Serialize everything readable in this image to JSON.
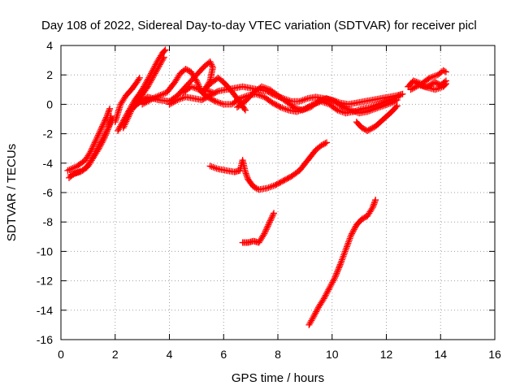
{
  "chart_data": {
    "type": "scatter",
    "title": "Day 108 of 2022, Sidereal Day-to-day VTEC variation (SDTVAR) for receiver picl",
    "xlabel": "GPS time / hours",
    "ylabel": "SDTVAR / TECUs",
    "xlim": [
      0,
      16
    ],
    "ylim": [
      -16,
      4
    ],
    "xticks": [
      0,
      2,
      4,
      6,
      8,
      10,
      12,
      14,
      16
    ],
    "yticks": [
      -16,
      -14,
      -12,
      -10,
      -8,
      -6,
      -4,
      -2,
      0,
      2,
      4
    ],
    "grid": true,
    "marker": "plus",
    "color": "#ff0000",
    "series": [
      {
        "x": [
          0.25,
          0.6,
          0.9,
          1.1,
          1.3,
          1.5,
          1.7,
          1.8
        ],
        "y": [
          -4.5,
          -4.2,
          -3.8,
          -3.2,
          -2.4,
          -1.6,
          -0.8,
          -0.3
        ]
      },
      {
        "x": [
          0.3,
          0.5,
          0.8,
          1.0,
          1.2,
          1.4,
          1.6,
          1.75,
          1.85
        ],
        "y": [
          -5.0,
          -4.7,
          -4.5,
          -4.2,
          -3.6,
          -3.0,
          -2.3,
          -1.6,
          -0.8
        ]
      },
      {
        "x": [
          0.35,
          0.7,
          0.95,
          1.15,
          1.35,
          1.55,
          1.75,
          1.9
        ],
        "y": [
          -4.8,
          -4.6,
          -4.3,
          -3.7,
          -3.0,
          -2.3,
          -1.6,
          -1.0
        ]
      },
      {
        "x": [
          2.0,
          2.2,
          2.4,
          2.6,
          2.8,
          2.9
        ],
        "y": [
          -1.2,
          0.0,
          0.6,
          1.0,
          1.5,
          1.8
        ]
      },
      {
        "x": [
          2.1,
          2.4,
          2.7,
          3.0,
          3.3,
          3.55,
          3.75,
          3.85
        ],
        "y": [
          -1.8,
          -0.8,
          0.2,
          1.0,
          2.0,
          2.9,
          3.5,
          3.7
        ]
      },
      {
        "x": [
          2.3,
          2.6,
          2.9,
          3.2,
          3.5,
          3.8
        ],
        "y": [
          -1.6,
          -0.4,
          0.4,
          1.2,
          2.2,
          3.2
        ]
      },
      {
        "x": [
          2.5,
          2.8,
          3.2,
          3.6,
          4.0,
          4.3,
          4.6,
          5.0,
          5.3,
          5.5,
          5.6,
          5.5,
          5.3,
          5.6
        ],
        "y": [
          -0.5,
          0.0,
          0.5,
          0.3,
          0.2,
          0.6,
          1.2,
          2.0,
          2.6,
          2.9,
          2.5,
          1.6,
          1.0,
          0.8
        ]
      },
      {
        "x": [
          3.0,
          3.5,
          3.9,
          4.2,
          4.4,
          4.6,
          4.8,
          5.0,
          5.2,
          5.5,
          5.8,
          6.0,
          6.2,
          6.5,
          6.8
        ],
        "y": [
          0.0,
          0.5,
          0.8,
          1.5,
          2.1,
          2.4,
          2.2,
          1.6,
          0.8,
          1.4,
          1.8,
          1.5,
          1.1,
          0.4,
          -0.4
        ]
      },
      {
        "x": [
          4.0,
          4.3,
          4.6,
          4.9,
          5.2,
          5.5,
          5.8,
          6.1,
          6.4,
          6.7,
          7.0,
          7.3,
          7.6,
          7.9,
          8.2,
          8.5,
          8.8,
          9.1,
          9.4,
          9.7,
          10.0,
          10.3,
          10.6,
          10.9,
          11.2,
          11.5,
          11.8,
          12.1,
          12.4,
          12.6
        ],
        "y": [
          0.0,
          0.3,
          0.5,
          0.4,
          0.3,
          0.6,
          0.9,
          1.0,
          1.1,
          1.2,
          1.1,
          1.0,
          0.9,
          0.6,
          0.4,
          0.2,
          0.2,
          0.4,
          0.5,
          0.4,
          0.3,
          0.1,
          0.0,
          0.1,
          0.2,
          0.3,
          0.4,
          0.5,
          0.6,
          0.7
        ]
      },
      {
        "x": [
          4.5,
          4.8,
          5.1,
          5.4,
          5.7,
          6.0,
          6.3,
          6.6,
          6.9,
          7.2,
          7.5,
          7.8,
          8.1,
          8.4,
          8.7,
          9.0,
          9.3,
          9.6,
          9.9,
          10.2,
          10.5,
          10.8,
          11.1,
          11.4,
          11.7,
          12.0,
          12.3,
          12.5
        ],
        "y": [
          0.8,
          1.2,
          1.0,
          0.5,
          0.2,
          0.0,
          0.0,
          0.4,
          0.6,
          0.7,
          0.5,
          0.1,
          -0.2,
          -0.4,
          -0.5,
          -0.3,
          0.0,
          0.2,
          0.0,
          -0.4,
          -0.6,
          -0.5,
          -0.3,
          -0.2,
          0.0,
          0.2,
          0.4,
          0.6
        ]
      },
      {
        "x": [
          6.5,
          6.8,
          7.1,
          7.4,
          7.7,
          8.0,
          8.3,
          8.6,
          8.9,
          9.2,
          9.5,
          9.8,
          10.1,
          10.4,
          10.7,
          11.0,
          11.3,
          11.6,
          11.9,
          12.2,
          12.4
        ],
        "y": [
          -0.2,
          0.2,
          0.8,
          1.2,
          1.0,
          0.6,
          0.2,
          -0.2,
          -0.4,
          -0.2,
          0.2,
          0.4,
          0.2,
          -0.2,
          -0.4,
          -0.6,
          -0.5,
          -0.3,
          -0.1,
          0.1,
          0.3
        ]
      },
      {
        "x": [
          10.9,
          11.1,
          11.3,
          11.6,
          11.9,
          12.2,
          12.4
        ],
        "y": [
          -1.2,
          -1.6,
          -1.8,
          -1.5,
          -1.0,
          -0.5,
          -0.1
        ]
      },
      {
        "x": [
          12.8,
          13.0,
          13.3,
          13.6,
          13.9,
          14.1,
          14.2
        ],
        "y": [
          1.2,
          1.6,
          1.4,
          1.8,
          2.0,
          2.3,
          2.2
        ]
      },
      {
        "x": [
          12.9,
          13.2,
          13.5,
          13.8,
          14.0,
          14.2
        ],
        "y": [
          1.0,
          1.3,
          1.2,
          1.5,
          1.3,
          1.6
        ]
      },
      {
        "x": [
          13.0,
          13.4,
          13.8,
          14.1,
          14.2
        ],
        "y": [
          1.6,
          1.2,
          1.0,
          1.2,
          1.4
        ]
      },
      {
        "x": [
          5.5,
          5.8,
          6.1,
          6.4,
          6.6,
          6.7,
          6.8,
          6.9,
          7.1,
          7.3,
          7.6,
          7.9,
          8.2,
          8.5,
          8.8,
          9.1,
          9.4,
          9.6,
          9.8
        ],
        "y": [
          -4.2,
          -4.4,
          -4.5,
          -4.6,
          -4.5,
          -3.8,
          -4.6,
          -5.1,
          -5.6,
          -5.8,
          -5.7,
          -5.5,
          -5.2,
          -4.9,
          -4.5,
          -3.8,
          -3.1,
          -2.8,
          -2.6
        ]
      },
      {
        "x": [
          6.7,
          6.9,
          7.1,
          7.3,
          7.5,
          7.7,
          7.85
        ],
        "y": [
          -9.4,
          -9.4,
          -9.3,
          -9.4,
          -8.8,
          -8.0,
          -7.4
        ]
      },
      {
        "x": [
          9.15,
          9.3,
          9.5,
          9.7,
          9.9,
          10.1,
          10.3,
          10.5,
          10.7,
          10.9,
          11.1,
          11.3,
          11.5,
          11.6
        ],
        "y": [
          -15.0,
          -14.5,
          -13.8,
          -13.2,
          -12.5,
          -11.8,
          -10.9,
          -9.9,
          -8.9,
          -8.2,
          -7.8,
          -7.6,
          -7.0,
          -6.5
        ]
      }
    ]
  }
}
